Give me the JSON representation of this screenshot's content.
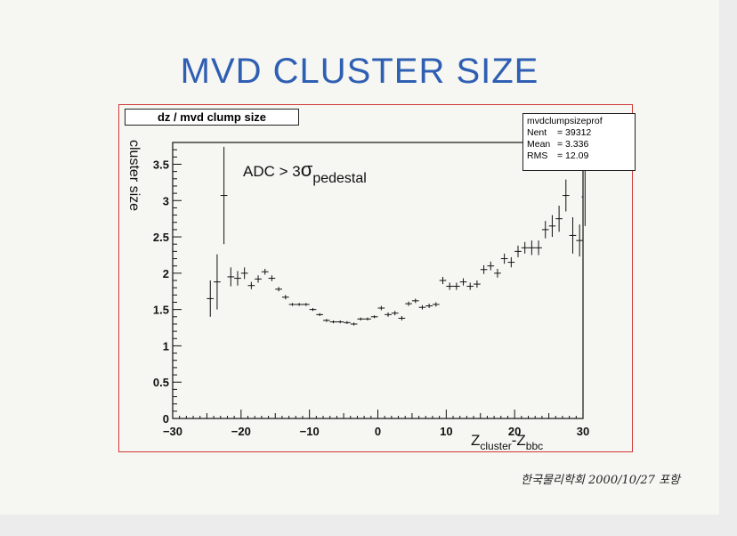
{
  "slide": {
    "title": "MVD CLUSTER SIZE",
    "footer": "한국물리학회 2000/10/27 포항"
  },
  "histogram_title": "dz / mvd clump size",
  "stats": {
    "name": "mvdclumpsizeprof",
    "rows": [
      {
        "key": "Nent",
        "value": "= 39312"
      },
      {
        "key": "Mean",
        "value": "= 3.336"
      },
      {
        "key": "RMS",
        "value": "= 12.09"
      }
    ]
  },
  "annotation": {
    "prefix": "ADC > 3",
    "sigma": "σ",
    "subscript": "pedestal"
  },
  "colors": {
    "title": "#2f5fb3",
    "frame": "#d03a3a",
    "ink": "#111111"
  },
  "chart_data": {
    "type": "scatter",
    "title": "dz / mvd clump size",
    "xlabel": {
      "main": "Z",
      "sub1": "cluster",
      "dash": "-Z",
      "sub2": "bbc"
    },
    "ylabel": "cluster size",
    "xlim": [
      -30,
      30
    ],
    "ylim": [
      0,
      3.8
    ],
    "xticks": [
      -30,
      -20,
      -10,
      0,
      10,
      20,
      30
    ],
    "yticks": [
      0,
      0.5,
      1,
      1.5,
      2,
      2.5,
      3,
      3.5
    ],
    "ytick_labels": [
      "0",
      "0.5",
      "1",
      "1.5",
      "2",
      "2.5",
      "3",
      "3.5"
    ],
    "points": [
      {
        "x": -24.5,
        "y": 1.65,
        "e": 0.25
      },
      {
        "x": -23.5,
        "y": 1.88,
        "e": 0.38
      },
      {
        "x": -22.5,
        "y": 3.07,
        "e": 0.67
      },
      {
        "x": -21.5,
        "y": 1.95,
        "e": 0.13
      },
      {
        "x": -20.5,
        "y": 1.93,
        "e": 0.1
      },
      {
        "x": -19.5,
        "y": 2.0,
        "e": 0.08
      },
      {
        "x": -18.5,
        "y": 1.83,
        "e": 0.05
      },
      {
        "x": -17.5,
        "y": 1.92,
        "e": 0.05
      },
      {
        "x": -16.5,
        "y": 2.02,
        "e": 0.04
      },
      {
        "x": -15.5,
        "y": 1.93,
        "e": 0.04
      },
      {
        "x": -14.5,
        "y": 1.78,
        "e": 0.03
      },
      {
        "x": -13.5,
        "y": 1.67,
        "e": 0.03
      },
      {
        "x": -12.5,
        "y": 1.57,
        "e": 0.02
      },
      {
        "x": -11.5,
        "y": 1.57,
        "e": 0.02
      },
      {
        "x": -10.5,
        "y": 1.57,
        "e": 0.02
      },
      {
        "x": -9.5,
        "y": 1.5,
        "e": 0.02
      },
      {
        "x": -8.5,
        "y": 1.43,
        "e": 0.02
      },
      {
        "x": -7.5,
        "y": 1.35,
        "e": 0.02
      },
      {
        "x": -6.5,
        "y": 1.33,
        "e": 0.02
      },
      {
        "x": -5.5,
        "y": 1.33,
        "e": 0.02
      },
      {
        "x": -4.5,
        "y": 1.32,
        "e": 0.02
      },
      {
        "x": -3.5,
        "y": 1.3,
        "e": 0.02
      },
      {
        "x": -2.5,
        "y": 1.37,
        "e": 0.02
      },
      {
        "x": -1.5,
        "y": 1.37,
        "e": 0.02
      },
      {
        "x": -0.5,
        "y": 1.4,
        "e": 0.02
      },
      {
        "x": 0.5,
        "y": 1.52,
        "e": 0.03
      },
      {
        "x": 1.5,
        "y": 1.43,
        "e": 0.03
      },
      {
        "x": 2.5,
        "y": 1.45,
        "e": 0.03
      },
      {
        "x": 3.5,
        "y": 1.38,
        "e": 0.03
      },
      {
        "x": 4.5,
        "y": 1.58,
        "e": 0.03
      },
      {
        "x": 5.5,
        "y": 1.62,
        "e": 0.03
      },
      {
        "x": 6.5,
        "y": 1.53,
        "e": 0.03
      },
      {
        "x": 7.5,
        "y": 1.55,
        "e": 0.03
      },
      {
        "x": 8.5,
        "y": 1.57,
        "e": 0.03
      },
      {
        "x": 9.5,
        "y": 1.9,
        "e": 0.05
      },
      {
        "x": 10.5,
        "y": 1.82,
        "e": 0.05
      },
      {
        "x": 11.5,
        "y": 1.82,
        "e": 0.05
      },
      {
        "x": 12.5,
        "y": 1.88,
        "e": 0.05
      },
      {
        "x": 13.5,
        "y": 1.82,
        "e": 0.05
      },
      {
        "x": 14.5,
        "y": 1.85,
        "e": 0.05
      },
      {
        "x": 15.5,
        "y": 2.05,
        "e": 0.06
      },
      {
        "x": 16.5,
        "y": 2.1,
        "e": 0.06
      },
      {
        "x": 17.5,
        "y": 2.0,
        "e": 0.06
      },
      {
        "x": 18.5,
        "y": 2.2,
        "e": 0.07
      },
      {
        "x": 19.5,
        "y": 2.15,
        "e": 0.07
      },
      {
        "x": 20.5,
        "y": 2.3,
        "e": 0.08
      },
      {
        "x": 21.5,
        "y": 2.35,
        "e": 0.08
      },
      {
        "x": 22.5,
        "y": 2.35,
        "e": 0.1
      },
      {
        "x": 23.5,
        "y": 2.35,
        "e": 0.1
      },
      {
        "x": 24.5,
        "y": 2.6,
        "e": 0.12
      },
      {
        "x": 25.5,
        "y": 2.65,
        "e": 0.15
      },
      {
        "x": 26.5,
        "y": 2.75,
        "e": 0.18
      },
      {
        "x": 27.5,
        "y": 3.07,
        "e": 0.22
      },
      {
        "x": 28.5,
        "y": 2.52,
        "e": 0.25
      },
      {
        "x": 29.5,
        "y": 2.45,
        "e": 0.22
      },
      {
        "x": 30.3,
        "y": 3.05,
        "e": 0.4
      }
    ]
  }
}
